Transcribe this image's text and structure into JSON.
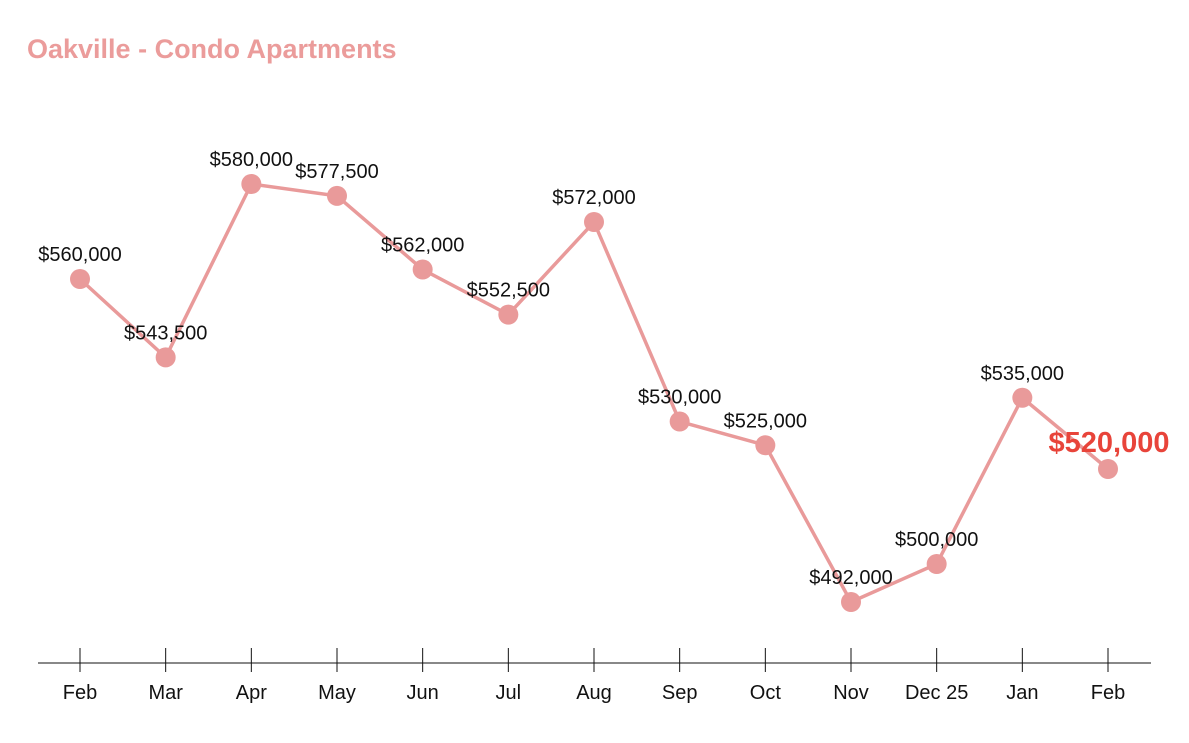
{
  "chart_data": {
    "type": "line",
    "title": "Oakville - Condo Apartments",
    "xlabel": "",
    "ylabel": "",
    "categories": [
      "Feb",
      "Mar",
      "Apr",
      "May",
      "Jun",
      "Jul",
      "Aug",
      "Sep",
      "Oct",
      "Nov",
      "Dec 25",
      "Jan",
      "Feb"
    ],
    "values": [
      560000,
      543500,
      580000,
      577500,
      562000,
      552500,
      572000,
      530000,
      525000,
      492000,
      500000,
      535000,
      520000
    ],
    "labels": [
      "$560,000",
      "$543,500",
      "$580,000",
      "$577,500",
      "$562,000",
      "$552,500",
      "$572,000",
      "$530,000",
      "$525,000",
      "$492,000",
      "$500,000",
      "$535,000",
      "$520,000"
    ],
    "ylim": [
      492000,
      580000
    ],
    "grid": false,
    "colors": {
      "line": "#e99a9a",
      "title": "#eb9c9b",
      "highlight": "#e8443a"
    }
  }
}
